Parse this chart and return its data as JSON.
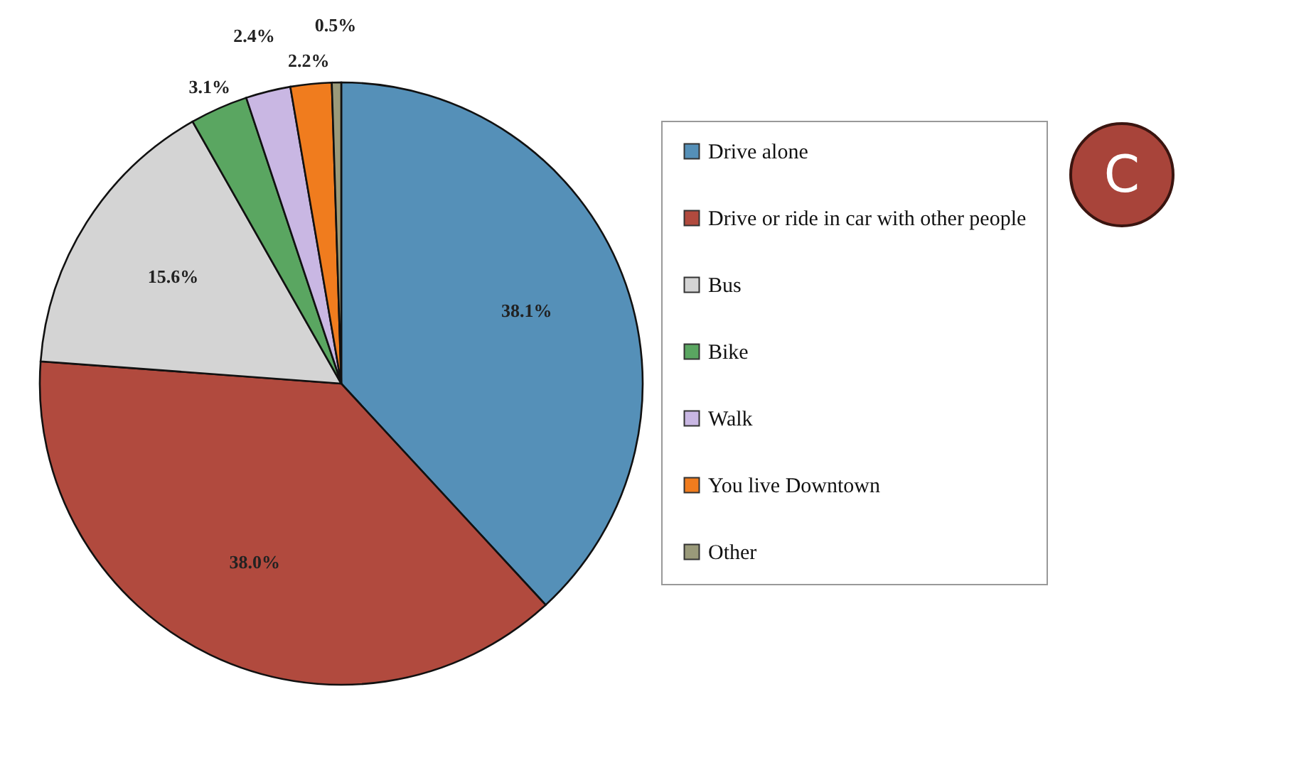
{
  "chart_data": {
    "type": "pie",
    "categories": [
      "Drive alone",
      "Drive or ride in car with other people",
      "Bus",
      "Bike",
      "Walk",
      "You live Downtown",
      "Other"
    ],
    "values": [
      38.1,
      38.0,
      15.6,
      3.1,
      2.4,
      2.2,
      0.5
    ],
    "colors": [
      "#5590b8",
      "#b14a3e",
      "#d4d4d4",
      "#5aa661",
      "#c9b7e3",
      "#f07c1e",
      "#9a9a7a"
    ],
    "value_labels": [
      "38.1%",
      "38.0%",
      "15.6%",
      "3.1%",
      "2.4%",
      "2.2%",
      "0.5%"
    ],
    "legend": "right",
    "annotations": [
      "C"
    ]
  }
}
